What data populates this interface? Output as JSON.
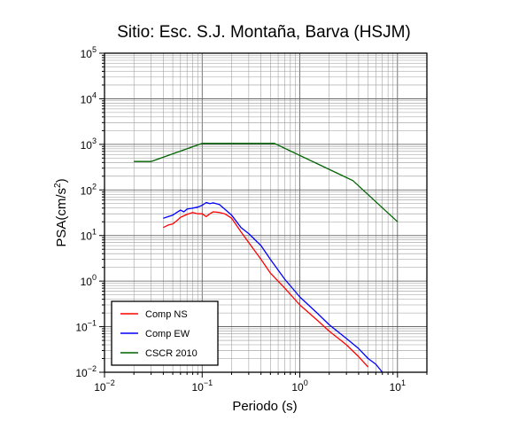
{
  "chart_data": {
    "type": "line",
    "title": "Sitio: Esc. S.J. Montaña, Barva (HSJM)",
    "xlabel": "Periodo (s)",
    "ylabel_main": "PSA(cm/s",
    "ylabel_sup": "2",
    "ylabel_tail": ")",
    "xscale": "log",
    "yscale": "log",
    "xlim": [
      0.01,
      20
    ],
    "ylim": [
      0.01,
      100000
    ],
    "grid": true,
    "legend_position": "bottom-left",
    "x_tick_base": "10",
    "x_ticks": [
      {
        "value": 0.01,
        "exp": "−2"
      },
      {
        "value": 0.1,
        "exp": "−1"
      },
      {
        "value": 1,
        "exp": "0"
      },
      {
        "value": 10,
        "exp": "1"
      }
    ],
    "y_tick_base": "10",
    "y_ticks": [
      {
        "value": 0.01,
        "exp": "−2"
      },
      {
        "value": 0.1,
        "exp": "−1"
      },
      {
        "value": 1,
        "exp": "0"
      },
      {
        "value": 10,
        "exp": "1"
      },
      {
        "value": 100,
        "exp": "2"
      },
      {
        "value": 1000,
        "exp": "3"
      },
      {
        "value": 10000,
        "exp": "4"
      },
      {
        "value": 100000,
        "exp": "5"
      }
    ],
    "series": [
      {
        "name": "Comp NS",
        "color": "#ff0000",
        "x": [
          0.04,
          0.045,
          0.05,
          0.055,
          0.06,
          0.065,
          0.07,
          0.08,
          0.09,
          0.1,
          0.11,
          0.12,
          0.13,
          0.15,
          0.17,
          0.2,
          0.25,
          0.3,
          0.4,
          0.5,
          0.7,
          1.0,
          1.5,
          2.0,
          3.0,
          4.0,
          5.0,
          6.0
        ],
        "y": [
          15,
          17,
          18,
          21,
          25,
          27,
          29,
          32,
          30,
          30,
          26,
          30,
          33,
          32,
          30,
          24,
          12,
          7,
          3,
          1.5,
          0.7,
          0.3,
          0.14,
          0.08,
          0.04,
          0.022,
          0.013,
          0.009
        ]
      },
      {
        "name": "Comp EW",
        "color": "#0000ff",
        "x": [
          0.04,
          0.045,
          0.05,
          0.055,
          0.06,
          0.065,
          0.07,
          0.08,
          0.09,
          0.1,
          0.11,
          0.12,
          0.13,
          0.15,
          0.17,
          0.2,
          0.25,
          0.3,
          0.4,
          0.5,
          0.7,
          1.0,
          1.5,
          2.0,
          3.0,
          4.0,
          5.0,
          6.0,
          7.0
        ],
        "y": [
          24,
          26,
          28,
          32,
          36,
          33,
          38,
          40,
          42,
          46,
          53,
          50,
          52,
          48,
          38,
          28,
          15,
          11,
          6,
          3,
          1.1,
          0.45,
          0.2,
          0.11,
          0.055,
          0.033,
          0.02,
          0.015,
          0.01
        ]
      },
      {
        "name": "CSCR 2010",
        "color": "#006400",
        "x": [
          0.02,
          0.03,
          0.1,
          0.55,
          3.5,
          10
        ],
        "y": [
          420,
          420,
          1050,
          1050,
          160,
          20
        ]
      }
    ]
  }
}
